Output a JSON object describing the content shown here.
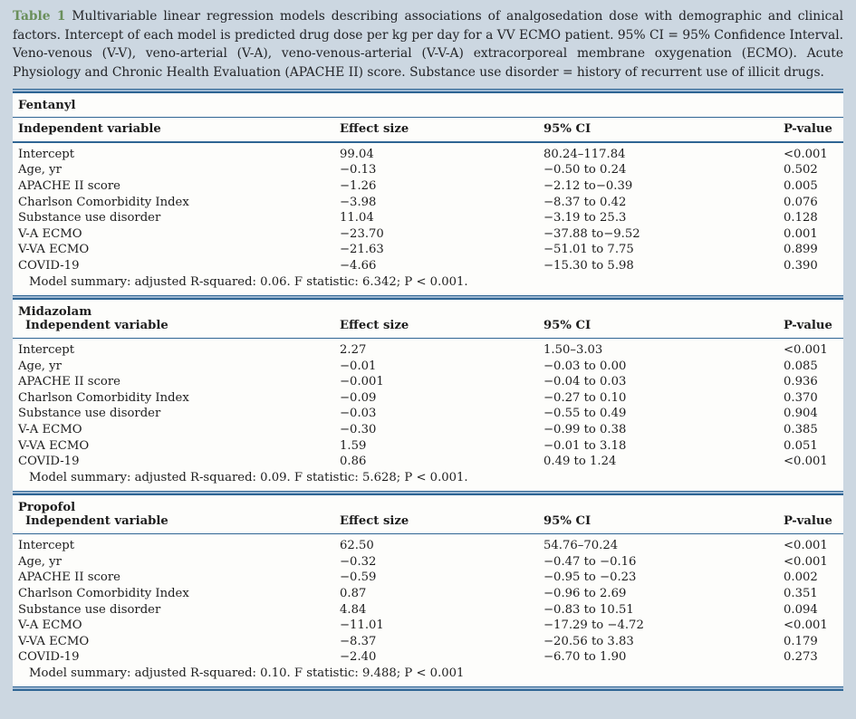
{
  "caption": {
    "label": "Table 1",
    "text": " Multivariable linear regression models describing associations of analgosedation dose with demographic and clinical factors. Intercept of each model is predicted drug dose per kg per day for a VV ECMO patient. 95% CI = 95% Confidence Interval. Veno-venous (V-V), veno-arterial (V-A), veno-venous-arterial (V-V-A) extracorporeal membrane oxygenation (ECMO). Acute Physiology and Chronic Health Evaluation (APACHE II) score. Substance use disorder = history of recurrent use of illicit drugs."
  },
  "columns": [
    "Independent variable",
    "Effect size",
    "95% CI",
    "P-value"
  ],
  "colors": {
    "page_background": "#ccd7e1",
    "table_background": "#fdfdfb",
    "rule_dark_blue": "#2f6594",
    "rule_light_blue": "#9db8d2",
    "table_label_green": "#6a8f5b",
    "text": "#1c1c1c"
  },
  "sections": [
    {
      "title": "Fentanyl",
      "title_rule": true,
      "indent_header": false,
      "rows": [
        [
          "Intercept",
          "99.04",
          "80.24–117.84",
          "<0.001"
        ],
        [
          "Age, yr",
          "−0.13",
          "−0.50 to 0.24",
          "0.502"
        ],
        [
          "APACHE II score",
          "−1.26",
          "−2.12 to−0.39",
          "0.005"
        ],
        [
          "Charlson Comorbidity Index",
          "−3.98",
          "−8.37 to 0.42",
          "0.076"
        ],
        [
          "Substance use disorder",
          "11.04",
          "−3.19 to 25.3",
          "0.128"
        ],
        [
          "V-A ECMO",
          "−23.70",
          "−37.88 to−9.52",
          "0.001"
        ],
        [
          "V-VA ECMO",
          "−21.63",
          "−51.01 to 7.75",
          "0.899"
        ],
        [
          "COVID-19",
          "−4.66",
          "−15.30 to 5.98",
          "0.390"
        ]
      ],
      "summary": "Model summary: adjusted R-squared: 0.06. F statistic: 6.342; P < 0.001."
    },
    {
      "title": "Midazolam",
      "title_rule": false,
      "indent_header": true,
      "rows": [
        [
          "Intercept",
          "2.27",
          "1.50–3.03",
          "<0.001"
        ],
        [
          "Age, yr",
          "−0.01",
          "−0.03 to 0.00",
          "0.085"
        ],
        [
          "APACHE II score",
          "−0.001",
          "−0.04 to 0.03",
          "0.936"
        ],
        [
          "Charlson Comorbidity Index",
          "−0.09",
          "−0.27 to 0.10",
          "0.370"
        ],
        [
          "Substance use disorder",
          "−0.03",
          "−0.55 to 0.49",
          "0.904"
        ],
        [
          "V-A ECMO",
          "−0.30",
          "−0.99 to 0.38",
          "0.385"
        ],
        [
          "V-VA ECMO",
          "1.59",
          "−0.01 to 3.18",
          "0.051"
        ],
        [
          "COVID-19",
          "0.86",
          "0.49 to 1.24",
          "<0.001"
        ]
      ],
      "summary": "Model summary: adjusted R-squared: 0.09. F statistic: 5.628; P < 0.001."
    },
    {
      "title": "Propofol",
      "title_rule": false,
      "indent_header": true,
      "rows": [
        [
          "Intercept",
          "62.50",
          "54.76–70.24",
          "<0.001"
        ],
        [
          "Age, yr",
          "−0.32",
          "−0.47 to −0.16",
          "<0.001"
        ],
        [
          "APACHE II score",
          "−0.59",
          "−0.95 to −0.23",
          "0.002"
        ],
        [
          "Charlson Comorbidity Index",
          "0.87",
          "−0.96 to 2.69",
          "0.351"
        ],
        [
          "Substance use disorder",
          "4.84",
          "−0.83 to 10.51",
          "0.094"
        ],
        [
          "V-A ECMO",
          "−11.01",
          "−17.29 to −4.72",
          "<0.001"
        ],
        [
          "V-VA ECMO",
          "−8.37",
          "−20.56 to 3.83",
          "0.179"
        ],
        [
          "COVID-19",
          "−2.40",
          "−6.70 to 1.90",
          "0.273"
        ]
      ],
      "summary": "Model summary: adjusted R-squared: 0.10. F statistic: 9.488; P < 0.001"
    }
  ]
}
